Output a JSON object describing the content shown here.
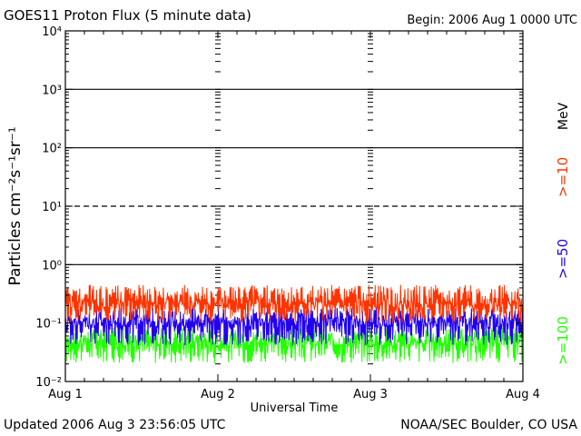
{
  "header": {
    "title": "GOES11 Proton Flux (5 minute data)",
    "begin": "Begin: 2006 Aug 1 0000 UTC"
  },
  "footer": {
    "updated": "Updated 2006 Aug  3 23:56:05 UTC",
    "credit": "NOAA/SEC Boulder, CO USA"
  },
  "chart_data": {
    "type": "line",
    "title": "GOES11 Proton Flux (5 minute data)",
    "xlabel": "Universal Time",
    "ylabel": "Particles cm⁻²s⁻¹sr⁻¹",
    "yscale": "log",
    "ylim": [
      0.01,
      10000
    ],
    "y_ticks": [
      {
        "value": 0.01,
        "label": "10⁻²"
      },
      {
        "value": 0.1,
        "label": "10⁻¹"
      },
      {
        "value": 1,
        "label": "10⁰"
      },
      {
        "value": 10,
        "label": "10¹"
      },
      {
        "value": 100,
        "label": "10²"
      },
      {
        "value": 1000,
        "label": "10³"
      },
      {
        "value": 10000,
        "label": "10⁴"
      }
    ],
    "x_ticks": [
      "Aug 1",
      "Aug 2",
      "Aug 3",
      "Aug 4"
    ],
    "xlim": [
      "2006-08-01",
      "2006-08-04"
    ],
    "energy_unit": "MeV",
    "threshold_lines": [
      {
        "value": 1000,
        "style": "solid"
      },
      {
        "value": 100,
        "style": "solid"
      },
      {
        "value": 10,
        "style": "dashed"
      },
      {
        "value": 1,
        "style": "solid"
      }
    ],
    "series": [
      {
        "name": ">=10",
        "color": "#ff3300",
        "typical": 0.18,
        "range": [
          0.1,
          0.5
        ]
      },
      {
        "name": ">=50",
        "color": "#2200ee",
        "typical": 0.085,
        "range": [
          0.04,
          0.2
        ]
      },
      {
        "name": ">=100",
        "color": "#22ff00",
        "typical": 0.04,
        "range": [
          0.02,
          0.09
        ]
      }
    ]
  }
}
